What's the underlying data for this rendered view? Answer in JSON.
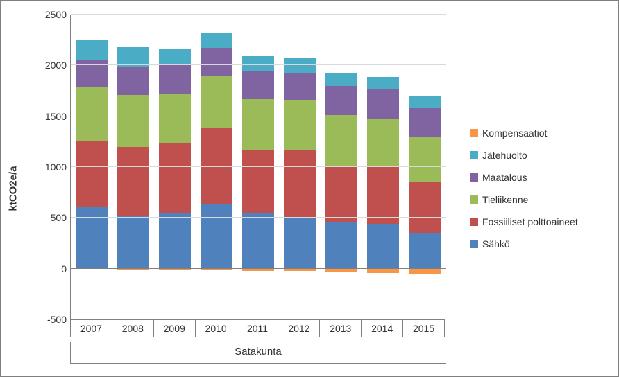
{
  "chart": {
    "type": "stacked-bar",
    "x_axis_title": "Satakunta",
    "y_axis_title": "ktCO2e/a",
    "ylim": [
      -500,
      2500
    ],
    "ytick_step": 500,
    "yticks": [
      -500,
      0,
      500,
      1000,
      1500,
      2000,
      2500
    ],
    "grid_color": "#d9d9d9",
    "zero_line_color": "#808080",
    "background_color": "#ffffff",
    "tick_fontsize": 14,
    "axis_title_fontsize": 15,
    "bar_width": 0.78,
    "categories": [
      "2007",
      "2008",
      "2009",
      "2010",
      "2011",
      "2012",
      "2013",
      "2014",
      "2015"
    ],
    "series": [
      {
        "name": "Sähkö",
        "color": "#4f81bd",
        "values": [
          610,
          520,
          550,
          640,
          550,
          510,
          460,
          440,
          350
        ]
      },
      {
        "name": "Fossiiliset polttoaineet",
        "color": "#c0504d",
        "values": [
          650,
          680,
          690,
          740,
          620,
          660,
          550,
          570,
          500
        ]
      },
      {
        "name": "Tieliikenne",
        "color": "#9bbb59",
        "values": [
          530,
          510,
          480,
          510,
          500,
          490,
          500,
          470,
          450
        ]
      },
      {
        "name": "Maatalous",
        "color": "#8064a2",
        "values": [
          270,
          280,
          280,
          280,
          270,
          270,
          290,
          290,
          280
        ]
      },
      {
        "name": "Jätehuolto",
        "color": "#4bacc6",
        "values": [
          185,
          190,
          165,
          155,
          150,
          145,
          120,
          115,
          120
        ]
      },
      {
        "name": "Kompensaatiot",
        "color": "#f79646",
        "values": [
          0,
          -10,
          -10,
          -15,
          -20,
          -25,
          -30,
          -40,
          -50
        ]
      }
    ],
    "legend": {
      "position": "right",
      "labels": [
        "Kompensaatiot",
        "Jätehuolto",
        "Maatalous",
        "Tieliikenne",
        "Fossiiliset polttoaineet",
        "Sähkö"
      ],
      "colors": [
        "#f79646",
        "#4bacc6",
        "#8064a2",
        "#9bbb59",
        "#c0504d",
        "#4f81bd"
      ],
      "fontsize": 14
    }
  }
}
